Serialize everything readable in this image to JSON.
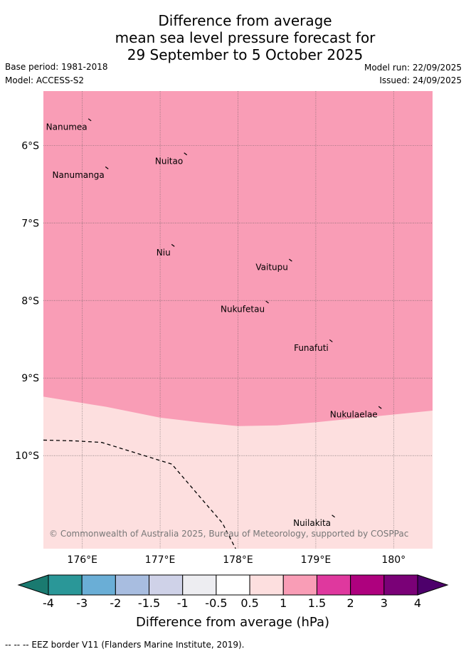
{
  "header": {
    "title_lines": [
      "Difference from average",
      "mean sea level pressure forecast for",
      "29 September to 5 October 2025"
    ],
    "base_period": "Base period: 1981-2018",
    "model": "Model: ACCESS-S2",
    "model_run": "Model run: 22/09/2025",
    "issued": "Issued: 24/09/2025"
  },
  "map": {
    "lon_range": [
      175.5,
      180.5
    ],
    "lat_range": [
      -11.2,
      -5.3
    ],
    "lon_ticks": [
      {
        "value": 176,
        "label": "176°E"
      },
      {
        "value": 177,
        "label": "177°E"
      },
      {
        "value": 178,
        "label": "178°E"
      },
      {
        "value": 179,
        "label": "179°E"
      },
      {
        "value": 180,
        "label": "180°"
      }
    ],
    "lat_ticks": [
      {
        "value": -6,
        "label": "6°S"
      },
      {
        "value": -7,
        "label": "7°S"
      },
      {
        "value": -8,
        "label": "8°S"
      },
      {
        "value": -9,
        "label": "9°S"
      },
      {
        "value": -10,
        "label": "10°S"
      }
    ],
    "places": [
      {
        "name": "Nanumea",
        "lon": 176.1,
        "lat": -5.67
      },
      {
        "name": "Nuitao",
        "lon": 177.33,
        "lat": -6.11
      },
      {
        "name": "Nanumanga",
        "lon": 176.32,
        "lat": -6.29
      },
      {
        "name": "Niu",
        "lon": 177.17,
        "lat": -7.29
      },
      {
        "name": "Vaitupu",
        "lon": 178.68,
        "lat": -7.48
      },
      {
        "name": "Nukufetau",
        "lon": 178.38,
        "lat": -8.02
      },
      {
        "name": "Funafuti",
        "lon": 179.2,
        "lat": -8.52
      },
      {
        "name": "Nukulaelae",
        "lon": 179.83,
        "lat": -9.38
      },
      {
        "name": "Nuilakita",
        "lon": 179.23,
        "lat": -10.78
      }
    ],
    "boundary_1_5_hpa": [
      [
        175.5,
        -9.24
      ],
      [
        176.3,
        -9.37
      ],
      [
        177.0,
        -9.51
      ],
      [
        177.5,
        -9.57
      ],
      [
        178.0,
        -9.62
      ],
      [
        178.5,
        -9.61
      ],
      [
        179.0,
        -9.57
      ],
      [
        179.5,
        -9.52
      ],
      [
        180.0,
        -9.47
      ],
      [
        180.5,
        -9.42
      ]
    ],
    "eez_border": [
      [
        175.5,
        -9.8
      ],
      [
        175.9,
        -9.81
      ],
      [
        176.25,
        -9.83
      ],
      [
        177.15,
        -10.11
      ],
      [
        177.5,
        -10.52
      ],
      [
        177.8,
        -10.87
      ],
      [
        177.97,
        -11.2
      ]
    ],
    "upper_fill_color": "#f99db6",
    "lower_fill_color": "#fddfdf",
    "copyright": "© Commonwealth of Australia 2025, Bureau of Meteorology, supported by COSPPac"
  },
  "colorbar": {
    "colors": [
      "#1a7a70",
      "#2a9798",
      "#6aaed6",
      "#a8bde0",
      "#cfd2e8",
      "#ededf1",
      "#ffffff",
      "#fddfdf",
      "#f99db6",
      "#df389e",
      "#ae017e",
      "#7a0177",
      "#4d006b"
    ],
    "labels": [
      "-4",
      "-3",
      "-2",
      "-1.5",
      "-1",
      "-0.5",
      "0.5",
      "1",
      "1.5",
      "2",
      "3",
      "4"
    ],
    "title": "Difference from average (hPa)"
  },
  "footer": {
    "eez_legend": "--  --  -- EEZ border V11 (Flanders Marine Institute, 2019)."
  }
}
